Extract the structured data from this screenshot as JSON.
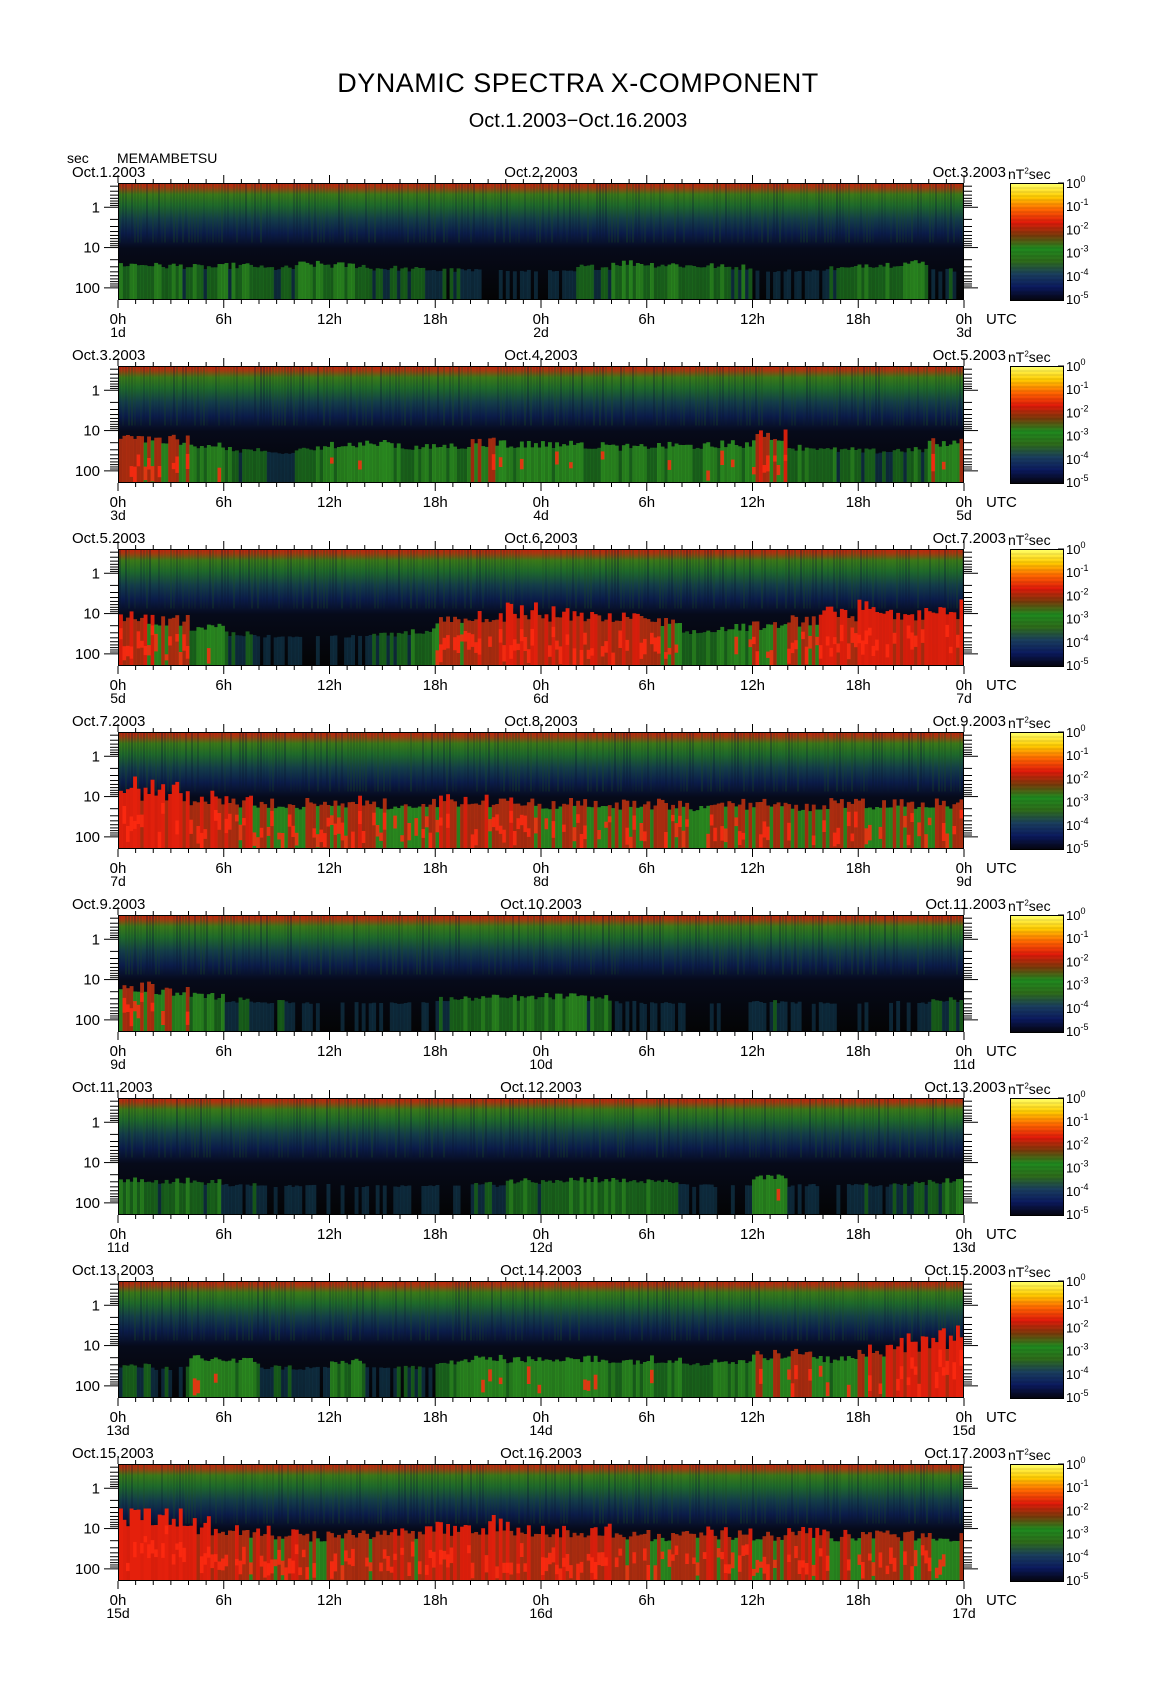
{
  "title": "DYNAMIC SPECTRA X-COMPONENT",
  "subtitle": "Oct.1.2003−Oct.16.2003",
  "y_unit_label": "sec",
  "station": "MEMAMBETSU",
  "time_unit": "UTC",
  "power_unit": "nT²sec",
  "colors": {
    "background": "#000000",
    "low": "#0b1a5e",
    "mid": "#1f8a1f",
    "high": "#e01a0a",
    "peak": "#ffe600"
  },
  "chart_data": {
    "type": "heatmap",
    "title": "DYNAMIC SPECTRA X-COMPONENT",
    "subtitle": "Oct.1.2003−Oct.16.2003",
    "ylabel": "sec",
    "y_scale": "log",
    "y_ticks": [
      "1",
      "10",
      "100"
    ],
    "x_ticks": [
      "0h",
      "6h",
      "12h",
      "18h",
      "0h",
      "6h",
      "12h",
      "18h",
      "0h"
    ],
    "x_unit": "UTC",
    "colorbar": {
      "unit": "nT²sec",
      "scale": "log",
      "ticks": [
        {
          "base": "10",
          "exp": "0"
        },
        {
          "base": "10",
          "exp": "-1"
        },
        {
          "base": "10",
          "exp": "-2"
        },
        {
          "base": "10",
          "exp": "-3"
        },
        {
          "base": "10",
          "exp": "-4"
        },
        {
          "base": "10",
          "exp": "-5"
        }
      ],
      "colors": [
        "#ffff66",
        "#ffcc00",
        "#ff6600",
        "#e01a0a",
        "#7a3a0a",
        "#1f8a1f",
        "#2e6b1a",
        "#1a3e5e",
        "#0b1a5e",
        "#050510"
      ]
    },
    "panels": [
      {
        "date_left": "Oct.1.2003",
        "date_mid": "Oct.2.2003",
        "date_right": "Oct.3.2003",
        "day_labels": [
          "1d",
          "2d",
          "3d"
        ],
        "activity": [
          0.45,
          0.4,
          0.35,
          0.4,
          0.3,
          0.45,
          0.42,
          0.3,
          0.25,
          0.2,
          0.15,
          0.12,
          0.1,
          0.35,
          0.5,
          0.45,
          0.4,
          0.35,
          0.1,
          0.15,
          0.3,
          0.45,
          0.5,
          0.2
        ]
      },
      {
        "date_left": "Oct.3.2003",
        "date_mid": "Oct.4.2003",
        "date_right": "Oct.5.2003",
        "day_labels": [
          "3d",
          "4d",
          "5d"
        ],
        "activity": [
          0.7,
          0.65,
          0.55,
          0.35,
          0.2,
          0.4,
          0.55,
          0.55,
          0.45,
          0.5,
          0.6,
          0.55,
          0.55,
          0.5,
          0.45,
          0.5,
          0.5,
          0.55,
          0.75,
          0.45,
          0.35,
          0.3,
          0.35,
          0.6
        ]
      },
      {
        "date_left": "Oct.5.2003",
        "date_mid": "Oct.6.2003",
        "date_right": "Oct.7.2003",
        "day_labels": [
          "5d",
          "6d",
          "7d"
        ],
        "activity": [
          0.75,
          0.7,
          0.55,
          0.3,
          0.15,
          0.1,
          0.15,
          0.25,
          0.4,
          0.7,
          0.8,
          0.85,
          0.8,
          0.8,
          0.75,
          0.7,
          0.4,
          0.55,
          0.6,
          0.7,
          0.8,
          0.85,
          0.85,
          0.85
        ]
      },
      {
        "date_left": "Oct.7.2003",
        "date_mid": "Oct.8.2003",
        "date_right": "Oct.9.2003",
        "day_labels": [
          "7d",
          "8d",
          "9d"
        ],
        "activity": [
          0.9,
          0.85,
          0.8,
          0.75,
          0.7,
          0.7,
          0.75,
          0.7,
          0.7,
          0.75,
          0.75,
          0.75,
          0.7,
          0.75,
          0.7,
          0.7,
          0.65,
          0.7,
          0.7,
          0.65,
          0.7,
          0.7,
          0.7,
          0.7
        ]
      },
      {
        "date_left": "Oct.9.2003",
        "date_mid": "Oct.10.2003",
        "date_right": "Oct.11.2003",
        "day_labels": [
          "9d",
          "10d",
          "11d"
        ],
        "activity": [
          0.7,
          0.6,
          0.45,
          0.3,
          0.2,
          0.15,
          0.1,
          0.15,
          0.1,
          0.35,
          0.4,
          0.4,
          0.45,
          0.4,
          0.15,
          0.1,
          0.1,
          0.1,
          0.2,
          0.15,
          0.1,
          0.1,
          0.15,
          0.3
        ]
      },
      {
        "date_left": "Oct.11.2003",
        "date_mid": "Oct.12.2003",
        "date_right": "Oct.13.2003",
        "day_labels": [
          "11d",
          "12d",
          "13d"
        ],
        "activity": [
          0.45,
          0.4,
          0.35,
          0.2,
          0.1,
          0.15,
          0.1,
          0.1,
          0.15,
          0.1,
          0.25,
          0.4,
          0.45,
          0.45,
          0.4,
          0.35,
          0.15,
          0.1,
          0.5,
          0.15,
          0.15,
          0.2,
          0.25,
          0.4
        ]
      },
      {
        "date_left": "Oct.13.2003",
        "date_mid": "Oct.14.2003",
        "date_right": "Oct.15.2003",
        "day_labels": [
          "13d",
          "14d",
          "15d"
        ],
        "activity": [
          0.3,
          0.2,
          0.55,
          0.5,
          0.25,
          0.2,
          0.45,
          0.2,
          0.2,
          0.5,
          0.55,
          0.55,
          0.6,
          0.55,
          0.5,
          0.55,
          0.45,
          0.5,
          0.65,
          0.7,
          0.55,
          0.75,
          0.85,
          0.9
        ]
      },
      {
        "date_left": "Oct.15.2003",
        "date_mid": "Oct.16.2003",
        "date_right": "Oct.17.2003",
        "day_labels": [
          "15d",
          "16d",
          "17d"
        ],
        "activity": [
          0.95,
          0.9,
          0.85,
          0.8,
          0.75,
          0.7,
          0.75,
          0.75,
          0.75,
          0.8,
          0.85,
          0.8,
          0.8,
          0.8,
          0.75,
          0.7,
          0.8,
          0.75,
          0.7,
          0.75,
          0.7,
          0.7,
          0.7,
          0.65
        ]
      }
    ]
  }
}
